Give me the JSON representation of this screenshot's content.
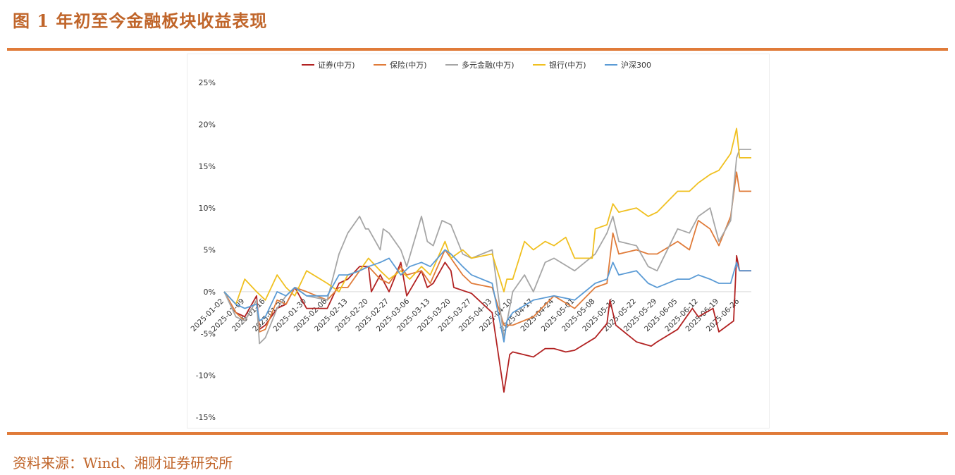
{
  "figure": {
    "title": "图 1 年初至今金融板块收益表现",
    "source": "资料来源：Wind、湘财证券研究所"
  },
  "colors": {
    "accent": "#e07b39",
    "title_text": "#c0652a"
  },
  "chart_data": {
    "type": "line",
    "title": "",
    "xlabel": "",
    "ylabel": "",
    "ylim": [
      -0.15,
      0.25
    ],
    "y_ticks": [
      0.25,
      0.2,
      0.15,
      0.1,
      0.05,
      0,
      -0.05,
      -0.1,
      -0.15
    ],
    "y_tick_labels": [
      "25%",
      "20%",
      "15%",
      "10%",
      "5%",
      "0%",
      "-5%",
      "-10%",
      "-15%"
    ],
    "x_tick_labels": [
      "2025-01-02",
      "2025-01-09",
      "2025-01-16",
      "2025-01-23",
      "2025-01-30",
      "2025-02-06",
      "2025-02-13",
      "2025-02-20",
      "2025-02-27",
      "2025-03-06",
      "2025-03-13",
      "2025-03-20",
      "2025-03-27",
      "2025-04-03",
      "2025-04-10",
      "2025-04-17",
      "2025-04-24",
      "2025-05-01",
      "2025-05-08",
      "2025-05-15",
      "2025-05-22",
      "2025-05-29",
      "2025-06-05",
      "2025-06-12",
      "2025-06-19",
      "2025-06-26"
    ],
    "x_tick_display": [
      "2025-01-02",
      "2025-01-09",
      "2025-01-16",
      "2025-01-23",
      "2025-01-30",
      "2025-02-06",
      "2025-02-13",
      "2025-02-20",
      "2025-02-27",
      "2025-03-06",
      "2025-03-13",
      "2025-03-20",
      "2025-03-27",
      "2025-04-03",
      "2025-04-10",
      "2025-04-17",
      "2025-04-24",
      "2025-05-01",
      "2025-05-08",
      "2025-05-15",
      "2025-05-22",
      "2025-05-29",
      "2025-06-05",
      "2025-06-12",
      "2025-06-19",
      "2025-06-26"
    ],
    "grid": false,
    "legend_position": "top",
    "x_range": [
      "2025-01-02",
      "2025-06-30"
    ],
    "series": [
      {
        "name": "证券(中万)",
        "color": "#b22222",
        "points": [
          [
            "2025-01-02",
            0.0
          ],
          [
            "2025-01-06",
            -0.025
          ],
          [
            "2025-01-09",
            -0.03
          ],
          [
            "2025-01-13",
            -0.005
          ],
          [
            "2025-01-14",
            -0.045
          ],
          [
            "2025-01-16",
            -0.04
          ],
          [
            "2025-01-20",
            -0.02
          ],
          [
            "2025-01-23",
            -0.015
          ],
          [
            "2025-01-26",
            0.005
          ],
          [
            "2025-01-30",
            -0.02
          ],
          [
            "2025-02-06",
            -0.02
          ],
          [
            "2025-02-10",
            0.01
          ],
          [
            "2025-02-13",
            0.015
          ],
          [
            "2025-02-17",
            0.03
          ],
          [
            "2025-02-20",
            0.03
          ],
          [
            "2025-02-21",
            0.0
          ],
          [
            "2025-02-24",
            0.02
          ],
          [
            "2025-02-27",
            0.0
          ],
          [
            "2025-03-03",
            0.035
          ],
          [
            "2025-03-05",
            -0.005
          ],
          [
            "2025-03-10",
            0.025
          ],
          [
            "2025-03-12",
            0.005
          ],
          [
            "2025-03-14",
            0.01
          ],
          [
            "2025-03-18",
            0.035
          ],
          [
            "2025-03-20",
            0.025
          ],
          [
            "2025-03-21",
            0.005
          ],
          [
            "2025-03-27",
            -0.002
          ],
          [
            "2025-04-03",
            -0.025
          ],
          [
            "2025-04-07",
            -0.12
          ],
          [
            "2025-04-09",
            -0.075
          ],
          [
            "2025-04-10",
            -0.072
          ],
          [
            "2025-04-17",
            -0.078
          ],
          [
            "2025-04-21",
            -0.068
          ],
          [
            "2025-04-24",
            -0.068
          ],
          [
            "2025-04-28",
            -0.072
          ],
          [
            "2025-05-01",
            -0.07
          ],
          [
            "2025-05-08",
            -0.055
          ],
          [
            "2025-05-12",
            -0.038
          ],
          [
            "2025-05-13",
            -0.01
          ],
          [
            "2025-05-15",
            -0.04
          ],
          [
            "2025-05-22",
            -0.06
          ],
          [
            "2025-05-27",
            -0.065
          ],
          [
            "2025-05-29",
            -0.06
          ],
          [
            "2025-06-05",
            -0.045
          ],
          [
            "2025-06-10",
            -0.02
          ],
          [
            "2025-06-12",
            -0.03
          ],
          [
            "2025-06-17",
            -0.02
          ],
          [
            "2025-06-19",
            -0.048
          ],
          [
            "2025-06-24",
            -0.035
          ],
          [
            "2025-06-25",
            0.043
          ],
          [
            "2025-06-26",
            0.025
          ],
          [
            "2025-06-30",
            0.025
          ]
        ]
      },
      {
        "name": "保险(中万)",
        "color": "#e07b39",
        "points": [
          [
            "2025-01-02",
            0.0
          ],
          [
            "2025-01-06",
            -0.025
          ],
          [
            "2025-01-09",
            -0.035
          ],
          [
            "2025-01-13",
            -0.01
          ],
          [
            "2025-01-14",
            -0.048
          ],
          [
            "2025-01-16",
            -0.045
          ],
          [
            "2025-01-20",
            -0.01
          ],
          [
            "2025-01-23",
            -0.015
          ],
          [
            "2025-01-26",
            0.005
          ],
          [
            "2025-01-30",
            0.0
          ],
          [
            "2025-02-06",
            -0.01
          ],
          [
            "2025-02-10",
            0.005
          ],
          [
            "2025-02-13",
            0.005
          ],
          [
            "2025-02-17",
            0.025
          ],
          [
            "2025-02-20",
            0.03
          ],
          [
            "2025-02-24",
            0.015
          ],
          [
            "2025-02-27",
            0.01
          ],
          [
            "2025-03-03",
            0.03
          ],
          [
            "2025-03-05",
            0.02
          ],
          [
            "2025-03-10",
            0.025
          ],
          [
            "2025-03-13",
            0.01
          ],
          [
            "2025-03-18",
            0.05
          ],
          [
            "2025-03-20",
            0.04
          ],
          [
            "2025-03-24",
            0.02
          ],
          [
            "2025-03-27",
            0.01
          ],
          [
            "2025-04-03",
            0.005
          ],
          [
            "2025-04-07",
            -0.04
          ],
          [
            "2025-04-10",
            -0.04
          ],
          [
            "2025-04-17",
            -0.03
          ],
          [
            "2025-04-24",
            -0.005
          ],
          [
            "2025-05-01",
            -0.02
          ],
          [
            "2025-05-08",
            0.005
          ],
          [
            "2025-05-12",
            0.01
          ],
          [
            "2025-05-14",
            0.07
          ],
          [
            "2025-05-16",
            0.045
          ],
          [
            "2025-05-22",
            0.05
          ],
          [
            "2025-05-26",
            0.045
          ],
          [
            "2025-05-29",
            0.045
          ],
          [
            "2025-06-05",
            0.06
          ],
          [
            "2025-06-09",
            0.05
          ],
          [
            "2025-06-12",
            0.085
          ],
          [
            "2025-06-16",
            0.075
          ],
          [
            "2025-06-19",
            0.055
          ],
          [
            "2025-06-23",
            0.09
          ],
          [
            "2025-06-25",
            0.143
          ],
          [
            "2025-06-26",
            0.12
          ],
          [
            "2025-06-30",
            0.12
          ]
        ]
      },
      {
        "name": "多元金融(中万)",
        "color": "#a6a6a6",
        "points": [
          [
            "2025-01-02",
            0.0
          ],
          [
            "2025-01-06",
            -0.03
          ],
          [
            "2025-01-09",
            -0.035
          ],
          [
            "2025-01-13",
            -0.01
          ],
          [
            "2025-01-14",
            -0.062
          ],
          [
            "2025-01-16",
            -0.055
          ],
          [
            "2025-01-20",
            -0.02
          ],
          [
            "2025-01-23",
            -0.005
          ],
          [
            "2025-01-26",
            0.005
          ],
          [
            "2025-01-30",
            -0.005
          ],
          [
            "2025-02-06",
            -0.01
          ],
          [
            "2025-02-10",
            0.045
          ],
          [
            "2025-02-13",
            0.07
          ],
          [
            "2025-02-17",
            0.09
          ],
          [
            "2025-02-19",
            0.075
          ],
          [
            "2025-02-20",
            0.075
          ],
          [
            "2025-02-24",
            0.05
          ],
          [
            "2025-02-25",
            0.075
          ],
          [
            "2025-02-27",
            0.07
          ],
          [
            "2025-03-03",
            0.05
          ],
          [
            "2025-03-05",
            0.03
          ],
          [
            "2025-03-10",
            0.09
          ],
          [
            "2025-03-12",
            0.06
          ],
          [
            "2025-03-14",
            0.055
          ],
          [
            "2025-03-17",
            0.085
          ],
          [
            "2025-03-20",
            0.08
          ],
          [
            "2025-03-24",
            0.045
          ],
          [
            "2025-03-27",
            0.04
          ],
          [
            "2025-04-03",
            0.05
          ],
          [
            "2025-04-07",
            -0.055
          ],
          [
            "2025-04-10",
            0.0
          ],
          [
            "2025-04-14",
            0.02
          ],
          [
            "2025-04-17",
            0.0
          ],
          [
            "2025-04-21",
            0.035
          ],
          [
            "2025-04-24",
            0.04
          ],
          [
            "2025-05-01",
            0.025
          ],
          [
            "2025-05-08",
            0.045
          ],
          [
            "2025-05-12",
            0.07
          ],
          [
            "2025-05-14",
            0.09
          ],
          [
            "2025-05-16",
            0.06
          ],
          [
            "2025-05-22",
            0.055
          ],
          [
            "2025-05-26",
            0.03
          ],
          [
            "2025-05-29",
            0.025
          ],
          [
            "2025-06-05",
            0.075
          ],
          [
            "2025-06-09",
            0.07
          ],
          [
            "2025-06-12",
            0.09
          ],
          [
            "2025-06-16",
            0.1
          ],
          [
            "2025-06-19",
            0.06
          ],
          [
            "2025-06-23",
            0.085
          ],
          [
            "2025-06-25",
            0.16
          ],
          [
            "2025-06-26",
            0.17
          ],
          [
            "2025-06-30",
            0.17
          ]
        ]
      },
      {
        "name": "银行(中万)",
        "color": "#f0c020",
        "points": [
          [
            "2025-01-02",
            0.0
          ],
          [
            "2025-01-06",
            -0.015
          ],
          [
            "2025-01-09",
            0.015
          ],
          [
            "2025-01-13",
            0.0
          ],
          [
            "2025-01-16",
            -0.01
          ],
          [
            "2025-01-20",
            0.02
          ],
          [
            "2025-01-23",
            0.005
          ],
          [
            "2025-01-26",
            -0.005
          ],
          [
            "2025-01-30",
            0.025
          ],
          [
            "2025-02-06",
            0.01
          ],
          [
            "2025-02-10",
            0.0
          ],
          [
            "2025-02-13",
            0.02
          ],
          [
            "2025-02-17",
            0.025
          ],
          [
            "2025-02-20",
            0.04
          ],
          [
            "2025-02-24",
            0.025
          ],
          [
            "2025-02-27",
            0.015
          ],
          [
            "2025-03-03",
            0.025
          ],
          [
            "2025-03-06",
            0.015
          ],
          [
            "2025-03-10",
            0.03
          ],
          [
            "2025-03-13",
            0.02
          ],
          [
            "2025-03-18",
            0.06
          ],
          [
            "2025-03-20",
            0.04
          ],
          [
            "2025-03-24",
            0.05
          ],
          [
            "2025-03-27",
            0.04
          ],
          [
            "2025-04-03",
            0.045
          ],
          [
            "2025-04-07",
            0.0
          ],
          [
            "2025-04-08",
            0.015
          ],
          [
            "2025-04-10",
            0.015
          ],
          [
            "2025-04-14",
            0.06
          ],
          [
            "2025-04-17",
            0.05
          ],
          [
            "2025-04-21",
            0.06
          ],
          [
            "2025-04-24",
            0.055
          ],
          [
            "2025-04-28",
            0.065
          ],
          [
            "2025-05-01",
            0.04
          ],
          [
            "2025-05-07",
            0.04
          ],
          [
            "2025-05-08",
            0.075
          ],
          [
            "2025-05-12",
            0.08
          ],
          [
            "2025-05-14",
            0.105
          ],
          [
            "2025-05-16",
            0.095
          ],
          [
            "2025-05-22",
            0.1
          ],
          [
            "2025-05-26",
            0.09
          ],
          [
            "2025-05-29",
            0.095
          ],
          [
            "2025-06-05",
            0.12
          ],
          [
            "2025-06-09",
            0.12
          ],
          [
            "2025-06-12",
            0.13
          ],
          [
            "2025-06-16",
            0.14
          ],
          [
            "2025-06-19",
            0.145
          ],
          [
            "2025-06-23",
            0.165
          ],
          [
            "2025-06-25",
            0.195
          ],
          [
            "2025-06-26",
            0.16
          ],
          [
            "2025-06-30",
            0.16
          ]
        ]
      },
      {
        "name": "沪深300",
        "color": "#5b9bd5",
        "points": [
          [
            "2025-01-02",
            0.0
          ],
          [
            "2025-01-06",
            -0.015
          ],
          [
            "2025-01-09",
            -0.02
          ],
          [
            "2025-01-13",
            -0.015
          ],
          [
            "2025-01-14",
            -0.035
          ],
          [
            "2025-01-16",
            -0.03
          ],
          [
            "2025-01-20",
            0.0
          ],
          [
            "2025-01-23",
            -0.005
          ],
          [
            "2025-01-26",
            0.005
          ],
          [
            "2025-01-30",
            -0.005
          ],
          [
            "2025-02-06",
            -0.005
          ],
          [
            "2025-02-10",
            0.02
          ],
          [
            "2025-02-13",
            0.02
          ],
          [
            "2025-02-17",
            0.025
          ],
          [
            "2025-02-20",
            0.03
          ],
          [
            "2025-02-24",
            0.035
          ],
          [
            "2025-02-27",
            0.04
          ],
          [
            "2025-03-03",
            0.02
          ],
          [
            "2025-03-06",
            0.03
          ],
          [
            "2025-03-10",
            0.035
          ],
          [
            "2025-03-13",
            0.03
          ],
          [
            "2025-03-18",
            0.05
          ],
          [
            "2025-03-20",
            0.045
          ],
          [
            "2025-03-24",
            0.03
          ],
          [
            "2025-03-27",
            0.02
          ],
          [
            "2025-04-03",
            0.01
          ],
          [
            "2025-04-07",
            -0.06
          ],
          [
            "2025-04-08",
            -0.035
          ],
          [
            "2025-04-10",
            -0.025
          ],
          [
            "2025-04-17",
            -0.01
          ],
          [
            "2025-04-24",
            -0.005
          ],
          [
            "2025-05-01",
            -0.01
          ],
          [
            "2025-05-08",
            0.01
          ],
          [
            "2025-05-12",
            0.015
          ],
          [
            "2025-05-14",
            0.035
          ],
          [
            "2025-05-16",
            0.02
          ],
          [
            "2025-05-22",
            0.025
          ],
          [
            "2025-05-26",
            0.01
          ],
          [
            "2025-05-29",
            0.005
          ],
          [
            "2025-06-05",
            0.015
          ],
          [
            "2025-06-09",
            0.015
          ],
          [
            "2025-06-12",
            0.02
          ],
          [
            "2025-06-16",
            0.015
          ],
          [
            "2025-06-19",
            0.01
          ],
          [
            "2025-06-23",
            0.01
          ],
          [
            "2025-06-25",
            0.035
          ],
          [
            "2025-06-26",
            0.025
          ],
          [
            "2025-06-30",
            0.025
          ]
        ]
      }
    ]
  }
}
